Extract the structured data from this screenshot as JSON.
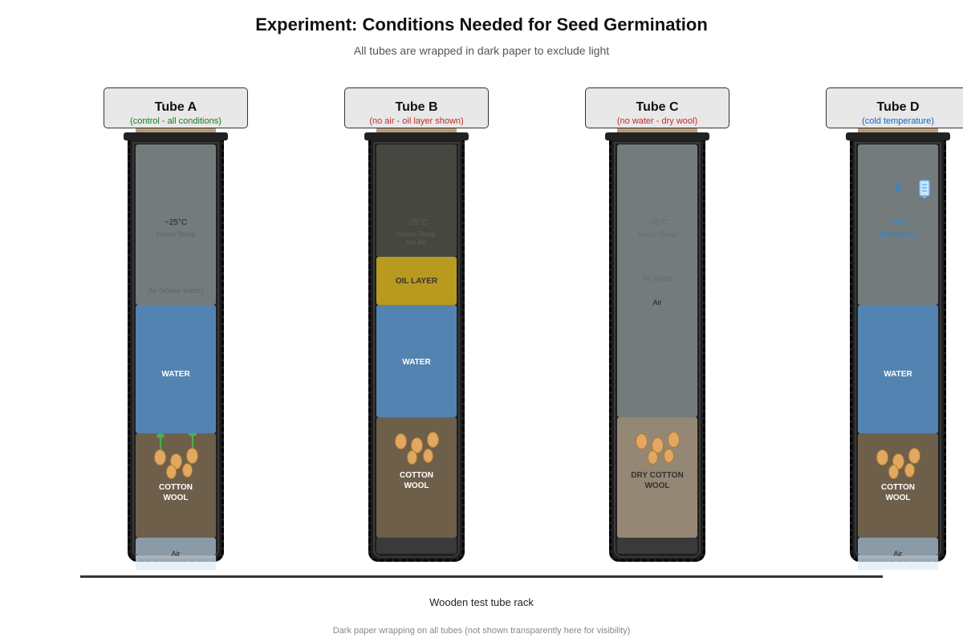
{
  "title": "Experiment: Conditions Needed for Seed Germination",
  "subtitle": "All tubes are wrapped in dark paper to exclude light",
  "colors": {
    "control": "#1a7a1a",
    "no_air": "#c62828",
    "no_water": "#c62828",
    "cold": "#1565c0",
    "water": "#5383b0",
    "oil": "#b89a1e",
    "cotton_wool": "#6e5f4b",
    "dry_cotton_wool": "#948773",
    "air": "#747b7c"
  },
  "tubes": {
    "a": {
      "name": "Tube A",
      "desc": "(control - all conditions)",
      "temp": "~25°C",
      "temp_label": "Room Temp",
      "air_label": "Air (above water)",
      "water_label": "WATER",
      "bottom_label": "COTTON\nWOOL",
      "bottom_air": "Air"
    },
    "b": {
      "name": "Tube B",
      "desc": "(no air - oil layer shown)",
      "temp": "~25°C",
      "temp_label": "Room Temp",
      "no_air_label": "No Air",
      "oil_label": "OIL LAYER",
      "water_label": "WATER",
      "bottom_label": "COTTON\nWOOL"
    },
    "c": {
      "name": "Tube C",
      "desc": "(no water - dry wool)",
      "temp": "~25°C",
      "temp_label": "Room Temp",
      "no_water_label": "No Water",
      "air_label": "Air",
      "bottom_label": "DRY COTTON\nWOOL"
    },
    "d": {
      "name": "Tube D",
      "desc": "(cold temperature)",
      "snow_icon": "❄",
      "temp": "~4°C",
      "temp_label": "Refrigerator",
      "water_label": "WATER",
      "bottom_label": "COTTON\nWOOL",
      "bottom_air": "Air"
    }
  },
  "rack_label": "Wooden test tube rack",
  "note": "Dark paper wrapping on all tubes (not shown transparently here for visibility)"
}
